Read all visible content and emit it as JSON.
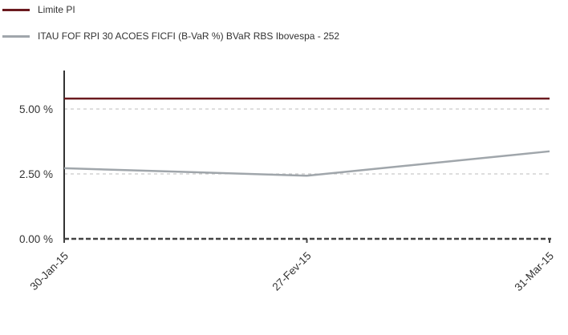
{
  "chart_data": {
    "type": "line",
    "title": "",
    "xlabel": "",
    "ylabel": "",
    "categories": [
      "30-Jan-15",
      "27-Fev-15",
      "31-Mar-15"
    ],
    "ylim": [
      0,
      6.5
    ],
    "yticks": [
      0,
      2.5,
      5
    ],
    "ytick_labels": [
      "0.00 %",
      "2.50 %",
      "5.00 %"
    ],
    "grid": "horizontal dashed",
    "legend_position": "top-left",
    "series": [
      {
        "name": "Limite PI",
        "color": "#6b1a1f",
        "values": [
          5.4,
          5.4,
          5.4
        ]
      },
      {
        "name": "ITAU FOF RPI 30 ACOES FICFI (B-VaR %) BVaR RBS Ibovespa - 252",
        "color": "#a0a6ab",
        "values": [
          2.72,
          2.43,
          3.37
        ]
      }
    ]
  }
}
